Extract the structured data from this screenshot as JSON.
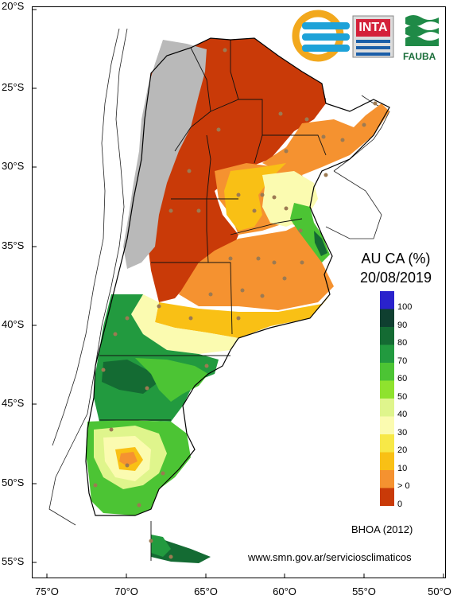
{
  "map": {
    "title": "AU CA (%)",
    "date": "20/08/2019",
    "model": "BHOA (2012)",
    "source_url": "www.smn.gov.ar/serviciosclimaticos",
    "lat_labels": [
      "20°S",
      "25°S",
      "30°S",
      "35°S",
      "40°S",
      "45°S",
      "50°S",
      "55°S"
    ],
    "lon_labels": [
      "75°O",
      "70°O",
      "65°O",
      "60°O",
      "55°O",
      "50°O"
    ],
    "logos": {
      "inta": "INTA",
      "fauba": "FAUBA"
    },
    "legend": [
      {
        "label": "100",
        "color": "#2a22cc"
      },
      {
        "label": "90",
        "color": "#0f3f30"
      },
      {
        "label": "80",
        "color": "#146b33"
      },
      {
        "label": "70",
        "color": "#229a3f"
      },
      {
        "label": "60",
        "color": "#4cc434"
      },
      {
        "label": "50",
        "color": "#8fe22e"
      },
      {
        "label": "40",
        "color": "#dff58c"
      },
      {
        "label": "30",
        "color": "#fbfbb0"
      },
      {
        "label": "20",
        "color": "#f7e847"
      },
      {
        "label": "10",
        "color": "#f9c015"
      },
      {
        "label": "> 0",
        "color": "#f59230"
      },
      {
        "label": "0",
        "color": "#c93a08"
      }
    ],
    "colors": {
      "no_data": "#b9b9b9",
      "station": "#9c7a52",
      "border": "#000000"
    }
  }
}
